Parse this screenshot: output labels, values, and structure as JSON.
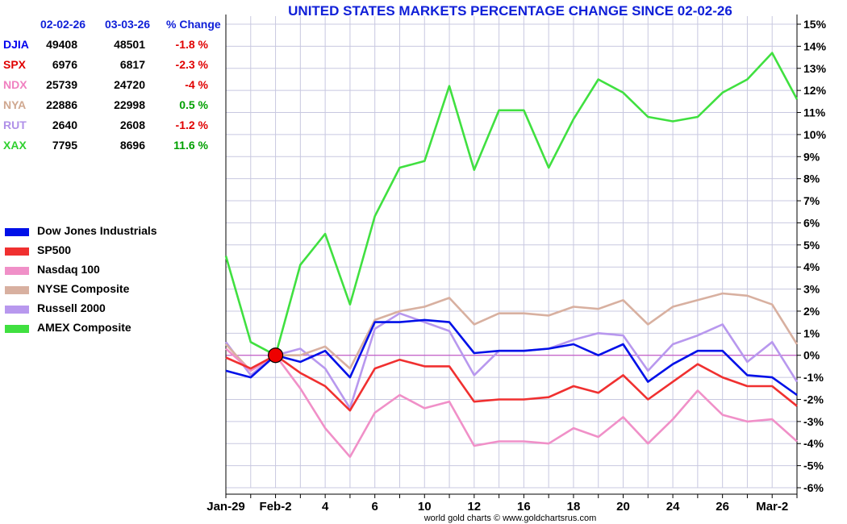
{
  "chart_data": {
    "type": "line",
    "title": "UNITED STATES MARKETS PERCENTAGE CHANGE SINCE 02-02-26",
    "credit": "world gold charts © www.goldchartsrus.com",
    "ylim": [
      -6,
      15
    ],
    "y_ticks": [
      "15%",
      "14%",
      "13%",
      "12%",
      "11%",
      "10%",
      "9%",
      "8%",
      "7%",
      "6%",
      "5%",
      "4%",
      "3%",
      "2%",
      "1%",
      "0%",
      "-1%",
      "-2%",
      "-3%",
      "-4%",
      "-5%",
      "-6%"
    ],
    "x_labels": [
      "Jan-29",
      "Feb-2",
      "4",
      "6",
      "10",
      "12",
      "16",
      "18",
      "20",
      "24",
      "26",
      "Mar-2"
    ],
    "x_label_index": [
      0,
      2,
      4,
      6,
      8,
      10,
      12,
      14,
      16,
      18,
      20,
      22
    ],
    "base_index": 2,
    "table": {
      "headers": [
        "02-02-26",
        "03-03-26",
        "% Change"
      ],
      "rows": [
        {
          "symbol": "DJIA",
          "start": "49408",
          "end": "48501",
          "change": "-1.8 %",
          "color": "#0000ee",
          "change_color": "#e00000"
        },
        {
          "symbol": "SPX",
          "start": "6976",
          "end": "6817",
          "change": "-2.3 %",
          "color": "#e00000",
          "change_color": "#e00000"
        },
        {
          "symbol": "NDX",
          "start": "25739",
          "end": "24720",
          "change": "-4 %",
          "color": "#f080c0",
          "change_color": "#e00000"
        },
        {
          "symbol": "NYA",
          "start": "22886",
          "end": "22998",
          "change": "0.5 %",
          "color": "#d0a890",
          "change_color": "#00a000"
        },
        {
          "symbol": "RUT",
          "start": "2640",
          "end": "2608",
          "change": "-1.2 %",
          "color": "#b090e8",
          "change_color": "#e00000"
        },
        {
          "symbol": "XAX",
          "start": "7795",
          "end": "8696",
          "change": "11.6 %",
          "color": "#30d030",
          "change_color": "#00a000"
        }
      ]
    },
    "series": [
      {
        "name": "Russell 2000",
        "color": "#b898ee",
        "values": [
          0.6,
          -0.9,
          0,
          0.3,
          -0.6,
          -2.4,
          1.2,
          1.9,
          1.5,
          1.1,
          -0.9,
          0.2,
          0.2,
          0.3,
          0.7,
          1.0,
          0.9,
          -0.7,
          0.5,
          0.9,
          1.4,
          -0.3,
          0.6,
          -1.2
        ]
      },
      {
        "name": "NYSE Composite",
        "color": "#d8b0a0",
        "values": [
          0.5,
          -0.7,
          0,
          0,
          0.4,
          -0.6,
          1.6,
          2.0,
          2.2,
          2.6,
          1.4,
          1.9,
          1.9,
          1.8,
          2.2,
          2.1,
          2.5,
          1.4,
          2.2,
          2.5,
          2.8,
          2.7,
          2.3,
          0.5
        ]
      },
      {
        "name": "Nasdaq 100",
        "color": "#f090c8",
        "values": [
          0.3,
          -0.7,
          0,
          -1.5,
          -3.3,
          -4.6,
          -2.6,
          -1.8,
          -2.4,
          -2.1,
          -4.1,
          -3.9,
          -3.9,
          -4.0,
          -3.3,
          -3.7,
          -2.8,
          -4.0,
          -2.9,
          -1.6,
          -2.7,
          -3.0,
          -2.9,
          -3.9
        ]
      },
      {
        "name": "SP500",
        "color": "#f03030",
        "values": [
          -0.1,
          -0.6,
          0,
          -0.8,
          -1.4,
          -2.5,
          -0.6,
          -0.2,
          -0.5,
          -0.5,
          -2.1,
          -2.0,
          -2.0,
          -1.9,
          -1.4,
          -1.7,
          -0.9,
          -2.0,
          -1.2,
          -0.4,
          -1.0,
          -1.4,
          -1.4,
          -2.3
        ]
      },
      {
        "name": "Dow Jones Industrials",
        "color": "#0010e8",
        "values": [
          -0.7,
          -1.0,
          0,
          -0.3,
          0.2,
          -1.0,
          1.5,
          1.5,
          1.6,
          1.5,
          0.1,
          0.2,
          0.2,
          0.3,
          0.5,
          0.0,
          0.5,
          -1.2,
          -0.4,
          0.2,
          0.2,
          -0.9,
          -1.0,
          -1.8
        ]
      },
      {
        "name": "AMEX Composite",
        "color": "#40e040",
        "values": [
          4.5,
          0.6,
          0,
          4.1,
          5.5,
          2.3,
          6.3,
          8.5,
          8.8,
          12.2,
          8.4,
          11.1,
          11.1,
          8.5,
          10.7,
          12.5,
          11.9,
          10.8,
          10.6,
          10.8,
          11.9,
          12.5,
          13.7,
          11.6
        ]
      }
    ],
    "legend": [
      {
        "name": "Dow Jones Industrials",
        "color": "#0010e8"
      },
      {
        "name": "SP500",
        "color": "#f03030"
      },
      {
        "name": "Nasdaq 100",
        "color": "#f090c8"
      },
      {
        "name": "NYSE Composite",
        "color": "#d8b0a0"
      },
      {
        "name": "Russell 2000",
        "color": "#b898ee"
      },
      {
        "name": "AMEX Composite",
        "color": "#40e040"
      }
    ]
  }
}
